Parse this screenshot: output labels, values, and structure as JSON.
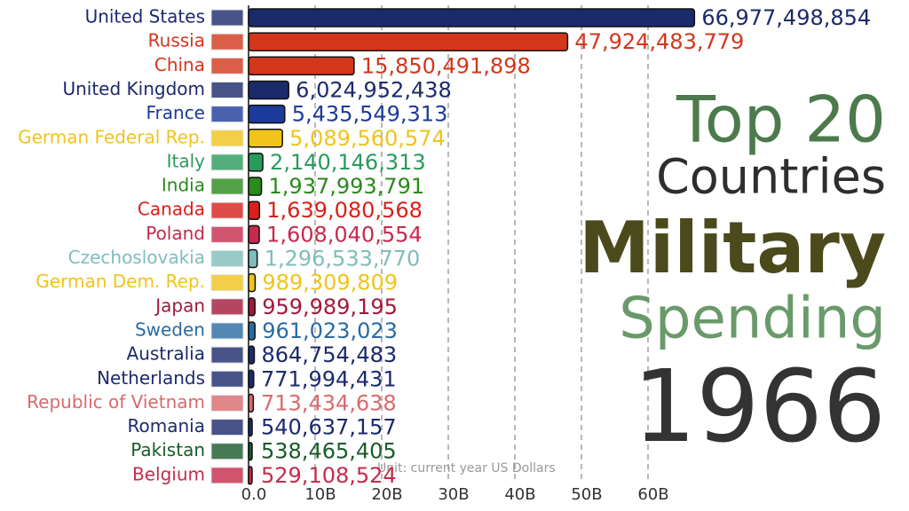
{
  "chart_data": {
    "type": "bar",
    "orientation": "horizontal",
    "title_lines": [
      "Top 20",
      "Countries",
      "Military",
      "Spending"
    ],
    "year": "1966",
    "note": "Unit: current year US Dollars",
    "categories": [
      "United States",
      "Russia",
      "China",
      "United Kingdom",
      "France",
      "German Federal Rep.",
      "Italy",
      "India",
      "Canada",
      "Poland",
      "Czechoslovakia",
      "German Dem. Rep.",
      "Japan",
      "Sweden",
      "Australia",
      "Netherlands",
      "Republic of Vietnam",
      "Romania",
      "Pakistan",
      "Belgium"
    ],
    "values": [
      66977498854,
      47924483779,
      15850491898,
      6024952438,
      5435549313,
      5089560574,
      2140146313,
      1937993791,
      1639080568,
      1608040554,
      1296533770,
      989309809,
      959989195,
      961023023,
      864754483,
      771994431,
      713434638,
      540637157,
      538465405,
      529108524
    ],
    "value_labels": [
      "66,977,498,854",
      "47,924,483,779",
      "15,850,491,898",
      "6,024,952,438",
      "5,435,549,313",
      "5,089,560,574",
      "2,140,146,313",
      "1,937,993,791",
      "1,639,080,568",
      "1,608,040,554",
      "1,296,533,770",
      "989,309,809",
      "959,989,195",
      "961,023,023",
      "864,754,483",
      "771,994,431",
      "713,434,638",
      "540,637,157",
      "538,465,405",
      "529,108,524"
    ],
    "colors": [
      "#1b2a6b",
      "#d2361b",
      "#d2361b",
      "#1b2a6b",
      "#1d3a9a",
      "#f0c419",
      "#2a9a5c",
      "#2a8a1c",
      "#d8201a",
      "#c62a4c",
      "#7fbdbb",
      "#f0c419",
      "#a3183a",
      "#2a6aa2",
      "#1b2a6b",
      "#1b2a6b",
      "#d86a6c",
      "#1b2a6b",
      "#1a5a2a",
      "#c62a4c"
    ],
    "xlim": [
      0,
      70000000000
    ],
    "xticks": [
      {
        "value": 0,
        "label": "0.0"
      },
      {
        "value": 10000000000,
        "label": "10B"
      },
      {
        "value": 20000000000,
        "label": "20B"
      },
      {
        "value": 30000000000,
        "label": "30B"
      },
      {
        "value": 40000000000,
        "label": "40B"
      },
      {
        "value": 50000000000,
        "label": "50B"
      },
      {
        "value": 60000000000,
        "label": "60B"
      }
    ],
    "grid": true
  }
}
